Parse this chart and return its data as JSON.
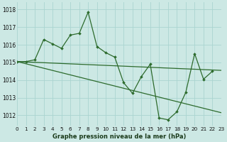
{
  "title": "Graphe pression niveau de la mer (hPa)",
  "bg_color": "#cce8e4",
  "grid_color": "#aad4d0",
  "line_color": "#2d6b2d",
  "xlim": [
    0,
    23
  ],
  "ylim": [
    1011.4,
    1018.4
  ],
  "yticks": [
    1012,
    1013,
    1014,
    1015,
    1016,
    1017,
    1018
  ],
  "xticks": [
    0,
    1,
    2,
    3,
    4,
    5,
    6,
    7,
    8,
    9,
    10,
    11,
    12,
    13,
    14,
    15,
    16,
    17,
    18,
    19,
    20,
    21,
    22,
    23
  ],
  "xtick_labels": [
    "0",
    "1",
    "2",
    "3",
    "4",
    "5",
    "6",
    "7",
    "8",
    "9",
    "10",
    "11",
    "12",
    "13",
    "14",
    "15",
    "16",
    "17",
    "18",
    "19",
    "20",
    "21",
    "22",
    "23"
  ],
  "main_x": [
    0,
    1,
    2,
    3,
    4,
    5,
    6,
    7,
    8,
    9,
    10,
    11,
    12,
    13,
    14,
    15,
    16,
    17,
    18,
    19,
    20,
    21,
    22
  ],
  "main_y": [
    1015.05,
    1015.05,
    1015.15,
    1016.3,
    1016.05,
    1015.8,
    1016.55,
    1016.65,
    1017.85,
    1015.9,
    1015.55,
    1015.3,
    1013.85,
    1013.25,
    1014.2,
    1014.9,
    1011.85,
    1011.75,
    1012.2,
    1013.3,
    1015.5,
    1014.05,
    1014.5
  ],
  "trend1_x": [
    0,
    23
  ],
  "trend1_y": [
    1015.05,
    1014.55
  ],
  "trend2_x": [
    0,
    23
  ],
  "trend2_y": [
    1015.05,
    1012.15
  ]
}
